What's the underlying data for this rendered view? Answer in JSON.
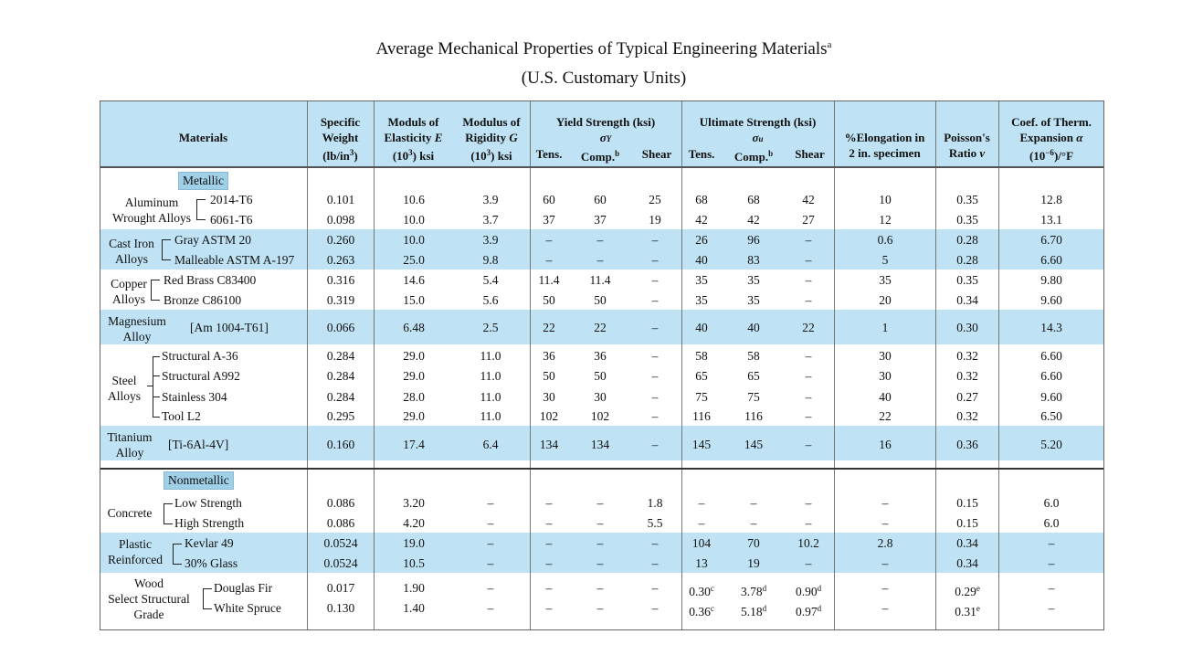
{
  "title": "Average Mechanical Properties of Typical Engineering Materials",
  "title_sup": "a",
  "subtitle": "(U.S. Customary Units)",
  "headers": {
    "materials": "Materials",
    "spec_weight": "Specific\nWeight\n(lb/in³)",
    "elasticity": "Moduls of\nElasticity E\n(10³) ksi",
    "rigidity": "Modulus of\nRigidity G\n(10³) ksi",
    "yield": "Yield Strength (ksi)",
    "yield_sym": "σY",
    "ultimate": "Ultimate Strength (ksi)",
    "ultimate_sym": "σu",
    "tens": "Tens.",
    "comp": "Comp.",
    "comp_sup": "b",
    "shear": "Shear",
    "elongation": "%Elongation in\n2 in. specimen",
    "poisson": "Poisson's\nRatio ν",
    "thermal": "Coef. of Therm.\nExpansion α\n(10⁻⁶)/°F"
  },
  "sections": {
    "metallic": "Metallic",
    "nonmetallic": "Nonmetallic"
  },
  "groups": {
    "aluminum": "Aluminum\nWrought Alloys",
    "castiron": "Cast Iron\nAlloys",
    "copper": "Copper\nAlloys",
    "magnesium": "Magnesium\nAlloy",
    "steel": "Steel\nAlloys",
    "titanium": "Titanium\nAlloy",
    "concrete": "Concrete",
    "plastic": "Plastic\nReinforced",
    "wood": "Wood\nSelect Structural\nGrade"
  },
  "rows": [
    {
      "name": "2014-T6",
      "w": "0.101",
      "e": "10.6",
      "g": "3.9",
      "yt": "60",
      "yc": "60",
      "ys": "25",
      "ut": "68",
      "uc": "68",
      "us": "42",
      "el": "10",
      "nu": "0.35",
      "al": "12.8"
    },
    {
      "name": "6061-T6",
      "w": "0.098",
      "e": "10.0",
      "g": "3.7",
      "yt": "37",
      "yc": "37",
      "ys": "19",
      "ut": "42",
      "uc": "42",
      "us": "27",
      "el": "12",
      "nu": "0.35",
      "al": "13.1"
    },
    {
      "name": "Gray ASTM 20",
      "w": "0.260",
      "e": "10.0",
      "g": "3.9",
      "yt": "–",
      "yc": "–",
      "ys": "–",
      "ut": "26",
      "uc": "96",
      "us": "–",
      "el": "0.6",
      "nu": "0.28",
      "al": "6.70"
    },
    {
      "name": "Malleable ASTM A-197",
      "w": "0.263",
      "e": "25.0",
      "g": "9.8",
      "yt": "–",
      "yc": "–",
      "ys": "–",
      "ut": "40",
      "uc": "83",
      "us": "–",
      "el": "5",
      "nu": "0.28",
      "al": "6.60"
    },
    {
      "name": "Red Brass C83400",
      "w": "0.316",
      "e": "14.6",
      "g": "5.4",
      "yt": "11.4",
      "yc": "11.4",
      "ys": "–",
      "ut": "35",
      "uc": "35",
      "us": "–",
      "el": "35",
      "nu": "0.35",
      "al": "9.80"
    },
    {
      "name": "Bronze C86100",
      "w": "0.319",
      "e": "15.0",
      "g": "5.6",
      "yt": "50",
      "yc": "50",
      "ys": "–",
      "ut": "35",
      "uc": "35",
      "us": "–",
      "el": "20",
      "nu": "0.34",
      "al": "9.60"
    },
    {
      "name": "[Am 1004-T61]",
      "w": "0.066",
      "e": "6.48",
      "g": "2.5",
      "yt": "22",
      "yc": "22",
      "ys": "–",
      "ut": "40",
      "uc": "40",
      "us": "22",
      "el": "1",
      "nu": "0.30",
      "al": "14.3"
    },
    {
      "name": "Structural A-36",
      "w": "0.284",
      "e": "29.0",
      "g": "11.0",
      "yt": "36",
      "yc": "36",
      "ys": "–",
      "ut": "58",
      "uc": "58",
      "us": "–",
      "el": "30",
      "nu": "0.32",
      "al": "6.60"
    },
    {
      "name": "Structural A992",
      "w": "0.284",
      "e": "29.0",
      "g": "11.0",
      "yt": "50",
      "yc": "50",
      "ys": "–",
      "ut": "65",
      "uc": "65",
      "us": "–",
      "el": "30",
      "nu": "0.32",
      "al": "6.60"
    },
    {
      "name": "Stainless 304",
      "w": "0.284",
      "e": "28.0",
      "g": "11.0",
      "yt": "30",
      "yc": "30",
      "ys": "–",
      "ut": "75",
      "uc": "75",
      "us": "–",
      "el": "40",
      "nu": "0.27",
      "al": "9.60"
    },
    {
      "name": "Tool L2",
      "w": "0.295",
      "e": "29.0",
      "g": "11.0",
      "yt": "102",
      "yc": "102",
      "ys": "–",
      "ut": "116",
      "uc": "116",
      "us": "–",
      "el": "22",
      "nu": "0.32",
      "al": "6.50"
    },
    {
      "name": "[Ti-6Al-4V]",
      "w": "0.160",
      "e": "17.4",
      "g": "6.4",
      "yt": "134",
      "yc": "134",
      "ys": "–",
      "ut": "145",
      "uc": "145",
      "us": "–",
      "el": "16",
      "nu": "0.36",
      "al": "5.20"
    },
    {
      "name": "Low Strength",
      "w": "0.086",
      "e": "3.20",
      "g": "–",
      "yt": "–",
      "yc": "–",
      "ys": "1.8",
      "ut": "–",
      "uc": "–",
      "us": "–",
      "el": "–",
      "nu": "0.15",
      "al": "6.0"
    },
    {
      "name": "High Strength",
      "w": "0.086",
      "e": "4.20",
      "g": "–",
      "yt": "–",
      "yc": "–",
      "ys": "5.5",
      "ut": "–",
      "uc": "–",
      "us": "–",
      "el": "–",
      "nu": "0.15",
      "al": "6.0"
    },
    {
      "name": "Kevlar 49",
      "w": "0.0524",
      "e": "19.0",
      "g": "–",
      "yt": "–",
      "yc": "–",
      "ys": "–",
      "ut": "104",
      "uc": "70",
      "us": "10.2",
      "el": "2.8",
      "nu": "0.34",
      "al": "–"
    },
    {
      "name": "30% Glass",
      "w": "0.0524",
      "e": "10.5",
      "g": "–",
      "yt": "–",
      "yc": "–",
      "ys": "–",
      "ut": "13",
      "uc": "19",
      "us": "–",
      "el": "–",
      "nu": "0.34",
      "al": "–"
    },
    {
      "name": "Douglas Fir",
      "w": "0.017",
      "e": "1.90",
      "g": "–",
      "yt": "–",
      "yc": "–",
      "ys": "–",
      "ut": "0.30",
      "ut_sup": "c",
      "uc": "3.78",
      "uc_sup": "d",
      "us": "0.90",
      "us_sup": "d",
      "el": "–",
      "nu": "0.29",
      "nu_sup": "e",
      "al": "–"
    },
    {
      "name": "White Spruce",
      "w": "0.130",
      "e": "1.40",
      "g": "–",
      "yt": "–",
      "yc": "–",
      "ys": "–",
      "ut": "0.36",
      "ut_sup": "c",
      "uc": "5.18",
      "uc_sup": "d",
      "us": "0.97",
      "us_sup": "d",
      "el": "–",
      "nu": "0.31",
      "nu_sup": "e",
      "al": "–"
    }
  ]
}
